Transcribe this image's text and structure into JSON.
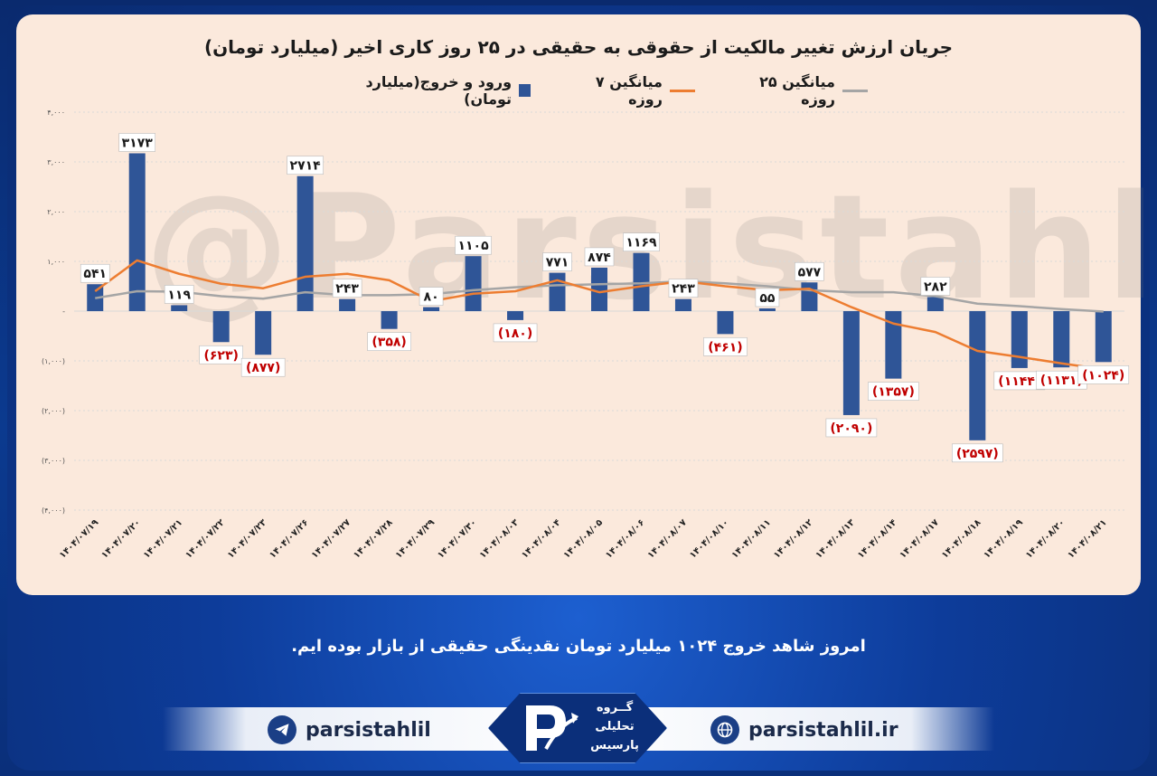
{
  "chart_data": {
    "type": "bar",
    "title": "جریان ارزش تغییر مالکیت از حقوقی به حقیقی در ۲۵ روز کاری اخیر (میلیارد تومان)",
    "legend_position": "top",
    "ylim": [
      -4000,
      4000
    ],
    "y_ticks": [
      4000,
      3000,
      2000,
      1000,
      0,
      -1000,
      -2000,
      -3000,
      -4000
    ],
    "y_tick_labels": [
      "۴,۰۰۰",
      "۳,۰۰۰",
      "۲,۰۰۰",
      "۱,۰۰۰",
      "-",
      "(۱,۰۰۰)",
      "(۲,۰۰۰)",
      "(۳,۰۰۰)",
      "(۴,۰۰۰)"
    ],
    "grid": true,
    "categories": [
      "۱۴۰۴/۰۷/۱۹",
      "۱۴۰۴/۰۷/۲۰",
      "۱۴۰۴/۰۷/۲۱",
      "۱۴۰۴/۰۷/۲۲",
      "۱۴۰۴/۰۷/۲۳",
      "۱۴۰۴/۰۷/۲۶",
      "۱۴۰۴/۰۷/۲۷",
      "۱۴۰۴/۰۷/۲۸",
      "۱۴۰۴/۰۷/۲۹",
      "۱۴۰۴/۰۷/۳۰",
      "۱۴۰۴/۰۸/۰۳",
      "۱۴۰۴/۰۸/۰۴",
      "۱۴۰۴/۰۸/۰۵",
      "۱۴۰۴/۰۸/۰۶",
      "۱۴۰۴/۰۸/۰۷",
      "۱۴۰۴/۰۸/۱۰",
      "۱۴۰۴/۰۸/۱۱",
      "۱۴۰۴/۰۸/۱۲",
      "۱۴۰۴/۰۸/۱۳",
      "۱۴۰۴/۰۸/۱۴",
      "۱۴۰۴/۰۸/۱۷",
      "۱۴۰۴/۰۸/۱۸",
      "۱۴۰۴/۰۸/۱۹",
      "۱۴۰۴/۰۸/۲۰",
      "۱۴۰۴/۰۸/۲۱"
    ],
    "series": [
      {
        "name": "ورود و خروج(میلیارد تومان)",
        "kind": "bar",
        "color": "#2f5597",
        "values": [
          541,
          3173,
          119,
          -623,
          -877,
          2714,
          243,
          -358,
          80,
          1105,
          -180,
          771,
          874,
          1169,
          243,
          -461,
          55,
          577,
          -2090,
          -1357,
          282,
          -2597,
          -1144,
          -1131,
          -1024
        ],
        "labels": [
          "۵۴۱",
          "۳۱۷۳",
          "۱۱۹",
          "(۶۲۳)",
          "(۸۷۷)",
          "۲۷۱۴",
          "۲۴۳",
          "(۳۵۸)",
          "۸۰",
          "۱۱۰۵",
          "(۱۸۰)",
          "۷۷۱",
          "۸۷۴",
          "۱۱۶۹",
          "۲۴۳",
          "(۴۶۱)",
          "۵۵",
          "۵۷۷",
          "(۲۰۹۰)",
          "(۱۳۵۷)",
          "۲۸۲",
          "(۲۵۹۷)",
          "(۱۱۴۴)",
          "(۱۱۳۱)",
          "(۱۰۲۴)"
        ]
      },
      {
        "name": "میانگین ۷ روزه",
        "kind": "line",
        "color": "#ed7d31",
        "values": [
          400,
          1020,
          750,
          550,
          460,
          690,
          750,
          620,
          200,
          350,
          400,
          620,
          380,
          500,
          600,
          500,
          420,
          450,
          80,
          -250,
          -420,
          -800,
          -920,
          -1050,
          -1170
        ]
      },
      {
        "name": "میانگین ۲۵ روزه",
        "kind": "line",
        "color": "#a5a5a5",
        "values": [
          260,
          400,
          390,
          300,
          250,
          380,
          320,
          320,
          340,
          420,
          480,
          520,
          540,
          560,
          600,
          560,
          500,
          420,
          380,
          380,
          300,
          150,
          100,
          40,
          -10
        ]
      }
    ],
    "watermark": "@Parsistahlil"
  },
  "caption": "امروز شاهد خروج ۱۰۲۴ میلیارد تومان نقدینگی حقیقی از بازار بوده ایم.",
  "footer": {
    "telegram_handle": "parsistahlil",
    "website": "parsistahlil.ir",
    "logo_lines": [
      "گــروه",
      "تحلیلی",
      "پارسیس"
    ]
  },
  "colors": {
    "background": "#0a2f7a",
    "panel": "#fbe9dc",
    "positive_label": "#1b1b1b",
    "negative_label": "#c00000"
  }
}
